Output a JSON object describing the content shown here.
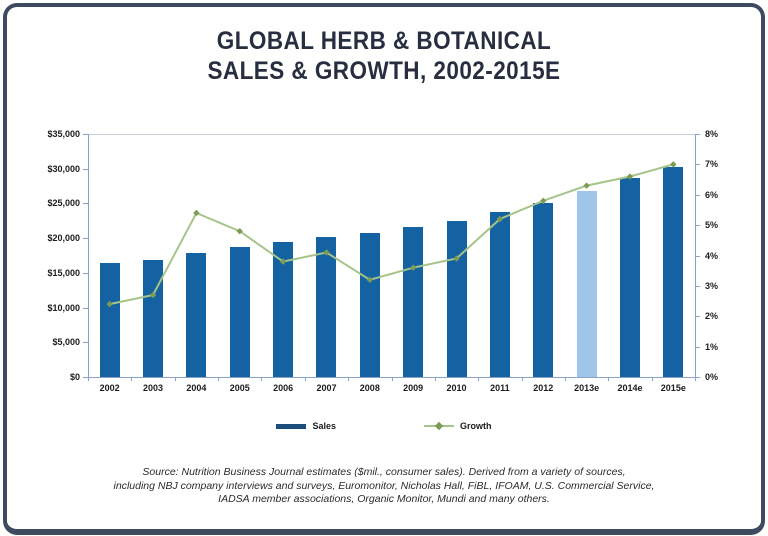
{
  "title": {
    "line1": "GLOBAL HERB & BOTANICAL",
    "line2": "SALES & GROWTH, 2002-2015E"
  },
  "legend": {
    "sales_label": "Sales",
    "growth_label": "Growth"
  },
  "source": {
    "line1": "Source: Nutrition Business Journal estimates ($mil., consumer sales). Derived from a variety of sources,",
    "line2": "including NBJ company interviews and surveys, Euromonitor, Nicholas Hall, FiBL, IFOAM, U.S. Commercial Service,",
    "line3": "IADSA member associations, Organic Monitor, Mundi and many others."
  },
  "chart_data": {
    "type": "bar",
    "title": "GLOBAL HERB & BOTANICAL SALES & GROWTH, 2002-2015E",
    "categories": [
      "2002",
      "2003",
      "2004",
      "2005",
      "2006",
      "2007",
      "2008",
      "2009",
      "2010",
      "2011",
      "2012",
      "2013e",
      "2014e",
      "2015e"
    ],
    "series": [
      {
        "name": "Sales",
        "type": "bar",
        "axis": "left",
        "values": [
          16400,
          16800,
          17900,
          18700,
          19400,
          20100,
          20800,
          21600,
          22400,
          23700,
          25000,
          26800,
          28600,
          30300
        ]
      },
      {
        "name": "Growth",
        "type": "line",
        "axis": "right",
        "values": [
          2.4,
          2.7,
          5.4,
          4.8,
          3.8,
          4.1,
          3.2,
          3.6,
          3.9,
          5.2,
          5.8,
          6.3,
          6.6,
          7.0
        ]
      }
    ],
    "left_axis": {
      "min": 0,
      "max": 35000,
      "ticks": [
        "$35,000",
        "$30,000",
        "$25,000",
        "$20,000",
        "$15,000",
        "$10,000",
        "$5,000",
        "$0"
      ]
    },
    "right_axis": {
      "min": 0,
      "max": 8,
      "ticks": [
        "8%",
        "7%",
        "6%",
        "5%",
        "4%",
        "3%",
        "2%",
        "1%",
        "0%"
      ]
    },
    "highlight": {
      "category": "2013e"
    },
    "colors": {
      "bar": "#1562a3",
      "bar_highlight": "#9fc5e8",
      "line": "#a6c38a",
      "marker": "#7a9c55",
      "legend_sales": "#1c4e7b",
      "axis": "#8ba3c7",
      "frame_border": "#3e4a5e",
      "title_text": "#272e3f"
    },
    "grid": false,
    "legend_position": "bottom"
  }
}
